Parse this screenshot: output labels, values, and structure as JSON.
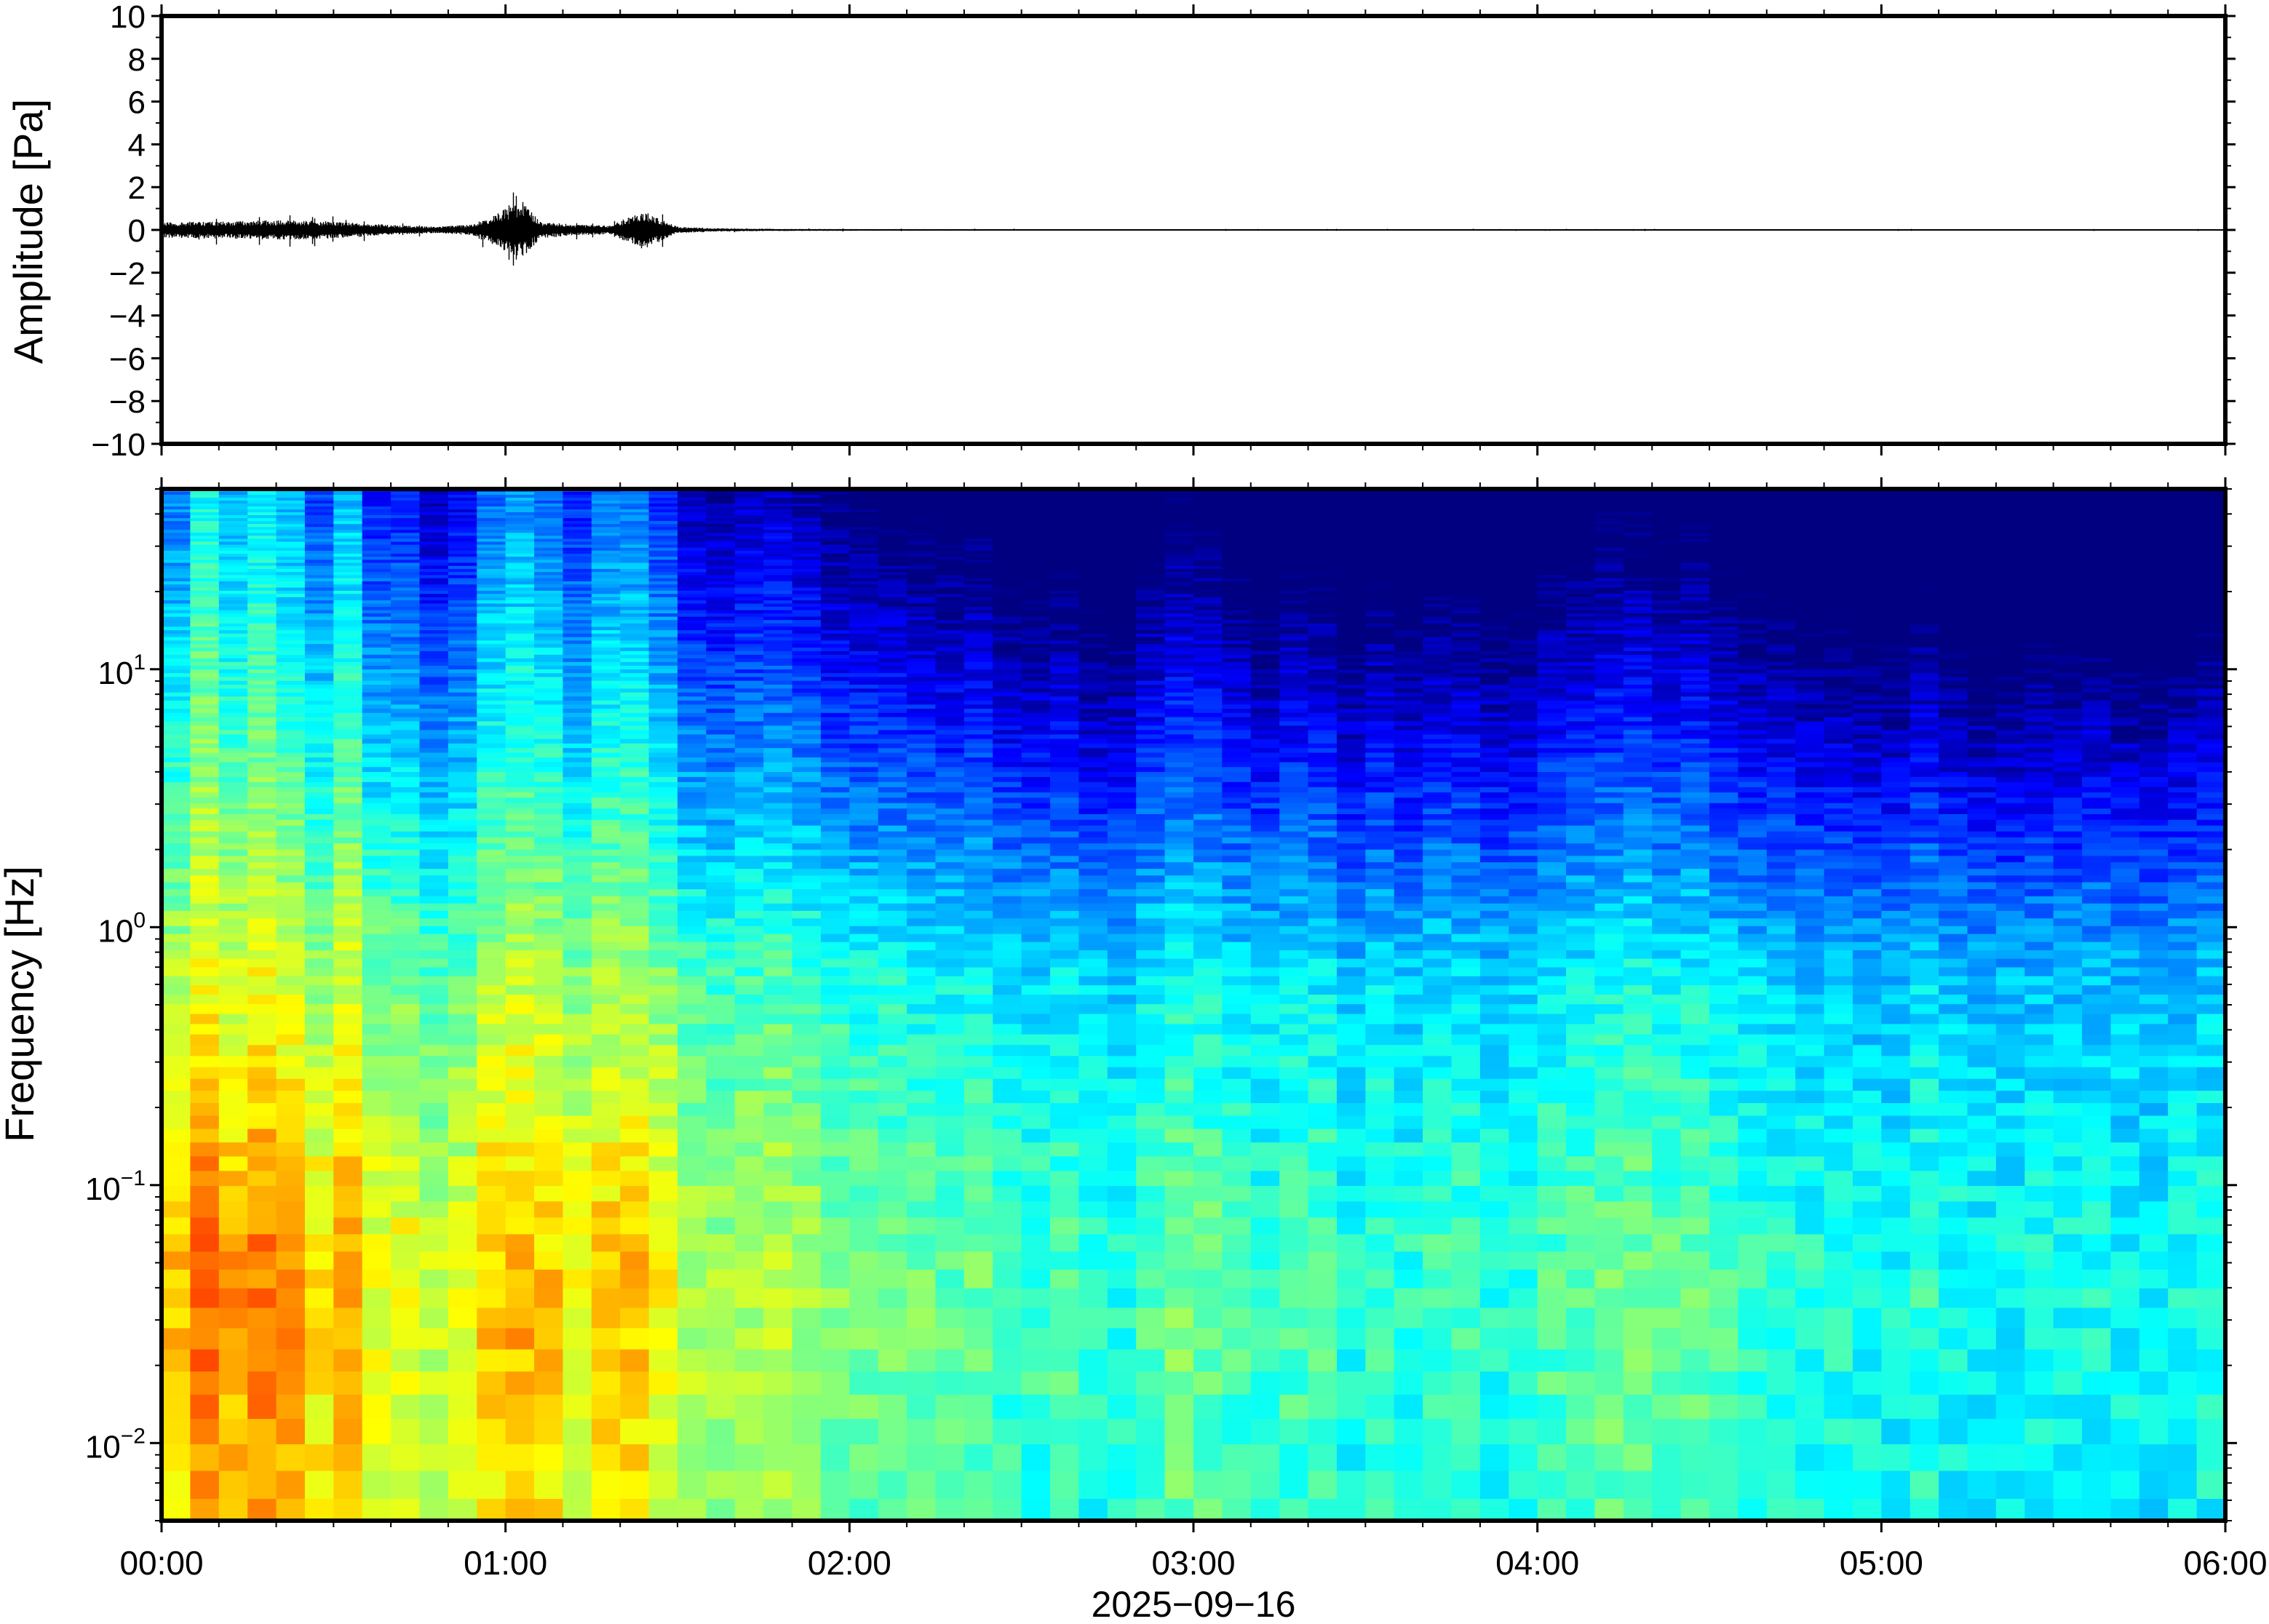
{
  "chart_data": [
    {
      "type": "line",
      "title": "",
      "ylabel": "Amplitude [Pa]",
      "ylim": [
        -10,
        10
      ],
      "y_ticks": [
        "10",
        "8",
        "6",
        "4",
        "2",
        "0",
        "−2",
        "−4",
        "−6",
        "−8",
        "−10"
      ],
      "y_tick_values": [
        10,
        8,
        6,
        4,
        2,
        0,
        -2,
        -4,
        -6,
        -8,
        -10
      ],
      "xlim_hours": [
        0,
        6
      ],
      "line_color": "#000000",
      "envelope": {
        "hours": [
          0.0,
          0.1,
          0.2,
          0.3,
          0.4,
          0.5,
          0.6,
          0.7,
          0.8,
          0.9,
          0.95,
          1.0,
          1.05,
          1.1,
          1.2,
          1.3,
          1.4,
          1.5,
          1.6,
          1.8,
          2.0,
          3.0,
          4.0,
          5.0,
          6.0
        ],
        "half_range_pa": [
          0.35,
          0.4,
          0.4,
          0.45,
          0.45,
          0.4,
          0.3,
          0.2,
          0.15,
          0.25,
          0.6,
          1.0,
          1.3,
          0.4,
          0.25,
          0.2,
          0.9,
          0.15,
          0.08,
          0.05,
          0.04,
          0.03,
          0.03,
          0.03,
          0.03
        ]
      }
    },
    {
      "type": "heatmap",
      "title": "",
      "ylabel": "Frequency [Hz]",
      "xlabel": "2025−09−16",
      "y_scale": "log",
      "ylim_hz": [
        0.005,
        50
      ],
      "y_ticks": [
        {
          "value": 10,
          "base": "10",
          "exp": "1"
        },
        {
          "value": 1,
          "base": "10",
          "exp": "0"
        },
        {
          "value": 0.1,
          "base": "10",
          "exp": "−1"
        },
        {
          "value": 0.01,
          "base": "10",
          "exp": "−2"
        }
      ],
      "x_ticks": [
        "00:00",
        "01:00",
        "02:00",
        "03:00",
        "04:00",
        "05:00",
        "06:00"
      ],
      "x_tick_hours": [
        0,
        1,
        2,
        3,
        4,
        5,
        6
      ],
      "colormap": [
        "#000080",
        "#0000ff",
        "#0080ff",
        "#00ffff",
        "#80ff80",
        "#ffff00",
        "#ff8000",
        "#ff0000"
      ],
      "activity_profile": {
        "hours": [
          0.0,
          0.1,
          0.2,
          0.3,
          0.4,
          0.5,
          0.6,
          0.7,
          0.8,
          0.9,
          1.0,
          1.1,
          1.2,
          1.3,
          1.4,
          1.5,
          1.6,
          1.8,
          2.0,
          2.3,
          2.5,
          2.8,
          3.0,
          3.2,
          3.5,
          3.8,
          4.0,
          4.3,
          4.6,
          5.0,
          5.5,
          6.0
        ],
        "relative_level": [
          0.95,
          0.95,
          0.92,
          0.95,
          0.9,
          0.88,
          0.82,
          0.72,
          0.7,
          0.75,
          1.0,
          0.98,
          0.8,
          0.88,
          0.92,
          0.72,
          0.65,
          0.6,
          0.5,
          0.48,
          0.45,
          0.42,
          0.5,
          0.44,
          0.4,
          0.42,
          0.43,
          0.5,
          0.42,
          0.38,
          0.36,
          0.35
        ]
      }
    }
  ]
}
